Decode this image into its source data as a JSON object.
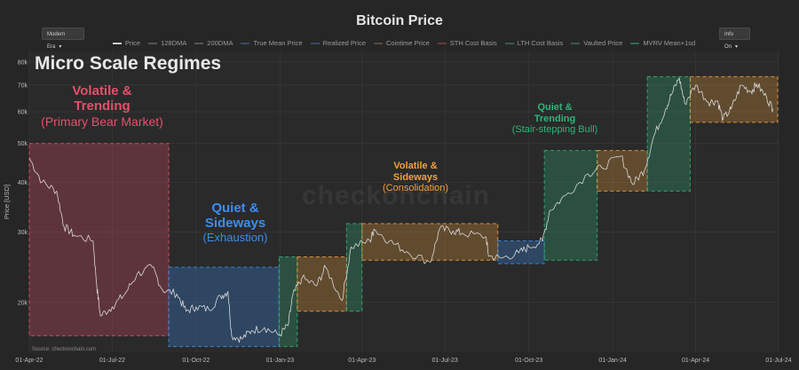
{
  "header": {
    "title": "Bitcoin Price",
    "era_dropdown": "Modern Era",
    "info_dropdown": "Info On",
    "source": "Source: checkonchain.com",
    "watermark": "checkonchain"
  },
  "legend": [
    {
      "label": "Price",
      "color": "#cfcfcf"
    },
    {
      "label": "128DMA",
      "color": "#555555"
    },
    {
      "label": "200DMA",
      "color": "#555555"
    },
    {
      "label": "True Mean Price",
      "color": "#3a4a66"
    },
    {
      "label": "Realized Price",
      "color": "#3a4a66"
    },
    {
      "label": "Cointime Price",
      "color": "#5a4a3a"
    },
    {
      "label": "STH Cost Basis",
      "color": "#663a3a"
    },
    {
      "label": "LTH Cost Basis",
      "color": "#3a5a4a"
    },
    {
      "label": "Vaulted Price",
      "color": "#3a5a4a"
    },
    {
      "label": "MVRV Mean+1sd",
      "color": "#2f6a55"
    }
  ],
  "annotations": {
    "heading": "Micro Scale Regimes",
    "bear_title_line1": "Volatile &",
    "bear_title_line2": "Trending",
    "bear_sub": "(Primary Bear Market)",
    "exh_title_line1": "Quiet &",
    "exh_title_line2": "Sideways",
    "exh_sub": "(Exhaustion)",
    "cons_title_line1": "Volatile &",
    "cons_title_line2": "Sideways",
    "cons_sub": "(Consolidation)",
    "bull_title_line1": "Quiet &",
    "bull_title_line2": "Trending",
    "bull_sub": "(Stair-stepping Bull)"
  },
  "chart_data": {
    "type": "line",
    "ylabel": "Price [USD]",
    "yscale": "log",
    "ylim": [
      15000,
      85000
    ],
    "xlim": [
      "2022-04-01",
      "2024-07-01"
    ],
    "x_ticks": [
      "01-Apr-22",
      "01-Jul-22",
      "01-Oct-22",
      "01-Jan-23",
      "01-Apr-23",
      "01-Jul-23",
      "01-Oct-23",
      "01-Jan-24",
      "01-Apr-24",
      "01-Jul-24"
    ],
    "y_ticks": [
      {
        "value": 20000,
        "label": "20k"
      },
      {
        "value": 30000,
        "label": "30k"
      },
      {
        "value": 40000,
        "label": "40k"
      },
      {
        "value": 50000,
        "label": "50k"
      },
      {
        "value": 60000,
        "label": "60k"
      },
      {
        "value": 70000,
        "label": "70k"
      },
      {
        "value": 80000,
        "label": "80k"
      }
    ],
    "series": [
      {
        "color": "#d8d8d8",
        "points": [
          [
            "2022-04-01",
            46000
          ],
          [
            "2022-04-15",
            40000
          ],
          [
            "2022-05-01",
            38000
          ],
          [
            "2022-05-09",
            31000
          ],
          [
            "2022-05-20",
            29500
          ],
          [
            "2022-06-10",
            28500
          ],
          [
            "2022-06-14",
            22000
          ],
          [
            "2022-06-18",
            18500
          ],
          [
            "2022-07-01",
            19500
          ],
          [
            "2022-07-15",
            21000
          ],
          [
            "2022-07-28",
            23500
          ],
          [
            "2022-08-14",
            24500
          ],
          [
            "2022-08-25",
            21500
          ],
          [
            "2022-09-10",
            21000
          ],
          [
            "2022-09-20",
            19000
          ],
          [
            "2022-10-01",
            19500
          ],
          [
            "2022-10-15",
            19200
          ],
          [
            "2022-10-28",
            20700
          ],
          [
            "2022-11-05",
            21300
          ],
          [
            "2022-11-09",
            16500
          ],
          [
            "2022-11-20",
            16200
          ],
          [
            "2022-12-01",
            17000
          ],
          [
            "2022-12-15",
            17300
          ],
          [
            "2022-12-31",
            16550
          ],
          [
            "2023-01-10",
            17500
          ],
          [
            "2023-01-15",
            20800
          ],
          [
            "2023-01-25",
            23000
          ],
          [
            "2023-02-10",
            22000
          ],
          [
            "2023-02-20",
            24500
          ],
          [
            "2023-03-10",
            20200
          ],
          [
            "2023-03-20",
            27500
          ],
          [
            "2023-04-10",
            28500
          ],
          [
            "2023-04-14",
            30500
          ],
          [
            "2023-05-01",
            28500
          ],
          [
            "2023-05-20",
            26800
          ],
          [
            "2023-06-15",
            25200
          ],
          [
            "2023-06-25",
            30500
          ],
          [
            "2023-07-10",
            30200
          ],
          [
            "2023-07-20",
            29800
          ],
          [
            "2023-08-15",
            29200
          ],
          [
            "2023-08-18",
            26100
          ],
          [
            "2023-09-01",
            25800
          ],
          [
            "2023-09-20",
            26600
          ],
          [
            "2023-10-01",
            27500
          ],
          [
            "2023-10-16",
            28500
          ],
          [
            "2023-10-24",
            34000
          ],
          [
            "2023-11-10",
            37000
          ],
          [
            "2023-12-05",
            42000
          ],
          [
            "2023-12-20",
            43500
          ],
          [
            "2024-01-10",
            46500
          ],
          [
            "2024-01-23",
            39500
          ],
          [
            "2024-02-05",
            43000
          ],
          [
            "2024-02-15",
            52000
          ],
          [
            "2024-02-28",
            61000
          ],
          [
            "2024-03-05",
            66000
          ],
          [
            "2024-03-14",
            73000
          ],
          [
            "2024-03-20",
            63000
          ],
          [
            "2024-04-01",
            70000
          ],
          [
            "2024-04-15",
            63500
          ],
          [
            "2024-04-25",
            64000
          ],
          [
            "2024-05-01",
            57500
          ],
          [
            "2024-05-10",
            61000
          ],
          [
            "2024-05-21",
            70000
          ],
          [
            "2024-06-01",
            67500
          ],
          [
            "2024-06-07",
            70500
          ],
          [
            "2024-06-18",
            65000
          ],
          [
            "2024-06-25",
            61000
          ]
        ]
      }
    ],
    "regimes": [
      {
        "start": "2022-04-01",
        "end": "2022-09-01",
        "ymin": 16500,
        "ymax": 50000,
        "color": "#e5506b"
      },
      {
        "start": "2022-09-01",
        "end": "2022-12-31",
        "ymin": 15500,
        "ymax": 24500,
        "color": "#3a8ef0"
      },
      {
        "start": "2022-12-31",
        "end": "2023-01-20",
        "ymin": 15500,
        "ymax": 26000,
        "color": "#2fb57a"
      },
      {
        "start": "2023-01-20",
        "end": "2023-03-15",
        "ymin": 19000,
        "ymax": 26000,
        "color": "#f2a03d"
      },
      {
        "start": "2023-03-15",
        "end": "2023-04-01",
        "ymin": 19000,
        "ymax": 31500,
        "color": "#2fb57a"
      },
      {
        "start": "2023-04-01",
        "end": "2023-08-28",
        "ymin": 25500,
        "ymax": 31500,
        "color": "#f2a03d"
      },
      {
        "start": "2023-08-28",
        "end": "2023-10-18",
        "ymin": 25000,
        "ymax": 28500,
        "color": "#3a8ef0"
      },
      {
        "start": "2023-10-18",
        "end": "2023-12-15",
        "ymin": 25500,
        "ymax": 48000,
        "color": "#2fb57a"
      },
      {
        "start": "2023-12-15",
        "end": "2024-02-08",
        "ymin": 38000,
        "ymax": 48000,
        "color": "#f2a03d"
      },
      {
        "start": "2024-02-08",
        "end": "2024-03-26",
        "ymin": 38000,
        "ymax": 73500,
        "color": "#2fb57a"
      },
      {
        "start": "2024-03-26",
        "end": "2024-06-30",
        "ymin": 56500,
        "ymax": 73500,
        "color": "#f2a03d"
      }
    ]
  }
}
